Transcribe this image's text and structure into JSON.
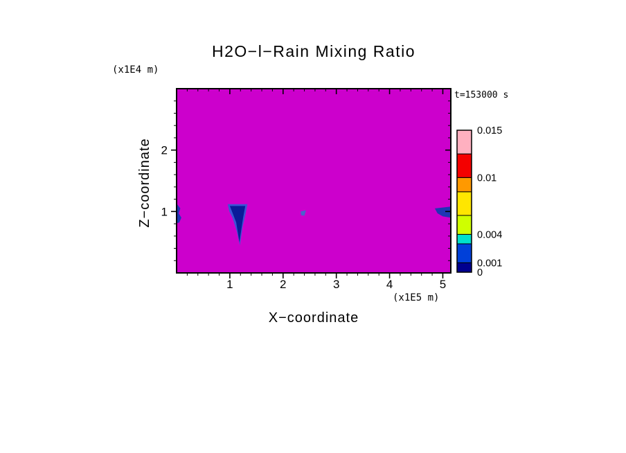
{
  "chart_data": {
    "type": "heatmap",
    "title": "H2O−l−Rain Mixing Ratio",
    "xlabel": "X−coordinate",
    "ylabel": "Z−coordinate",
    "x_units_label": "(x1E5 m)",
    "y_units_label": "(x1E4 m)",
    "time_annotation": "t=153000 s",
    "xlim": [
      0,
      5.15
    ],
    "ylim": [
      0,
      3.0
    ],
    "x_major_ticks": [
      1,
      2,
      3,
      4,
      5
    ],
    "y_major_ticks": [
      1,
      2
    ],
    "minor_tick_step": 0.2,
    "field_fill_color": "#cc00cc",
    "frame_color": "#000000",
    "colorbar": {
      "range": [
        0,
        0.015
      ],
      "labels": [
        {
          "value": 0.015,
          "text": "0.015"
        },
        {
          "value": 0.01,
          "text": "0.01"
        },
        {
          "value": 0.004,
          "text": "0.004"
        },
        {
          "value": 0.001,
          "text": "0.001"
        },
        {
          "value": 0,
          "text": "0"
        }
      ],
      "segments": [
        {
          "from": 0,
          "to": 0.001,
          "color": "#00008f"
        },
        {
          "from": 0.001,
          "to": 0.003,
          "color": "#0040d9"
        },
        {
          "from": 0.003,
          "to": 0.004,
          "color": "#00e0cc"
        },
        {
          "from": 0.004,
          "to": 0.006,
          "color": "#cfff00"
        },
        {
          "from": 0.006,
          "to": 0.0085,
          "color": "#ffe600"
        },
        {
          "from": 0.0085,
          "to": 0.01,
          "color": "#ff9900"
        },
        {
          "from": 0.01,
          "to": 0.0125,
          "color": "#f40000"
        },
        {
          "from": 0.0125,
          "to": 0.015,
          "color": "#ffb0c0"
        }
      ]
    },
    "features": [
      {
        "name": "rain-patch-left-edge",
        "color": "#1f35b4",
        "points": [
          [
            0,
            1.13
          ],
          [
            0.07,
            1.05
          ],
          [
            0.04,
            0.97
          ],
          [
            0.09,
            0.9
          ],
          [
            0.05,
            0.82
          ],
          [
            0,
            0.81
          ]
        ]
      },
      {
        "name": "rain-plume-fringe",
        "color": "#3a55d6",
        "points": [
          [
            0.96,
            1.12
          ],
          [
            1.33,
            1.12
          ],
          [
            1.3,
            0.98
          ],
          [
            1.24,
            0.75
          ],
          [
            1.19,
            0.45
          ],
          [
            1.13,
            0.68
          ],
          [
            1.05,
            0.9
          ],
          [
            0.99,
            1.0
          ]
        ]
      },
      {
        "name": "rain-plume-core",
        "color": "#0a1a99",
        "points": [
          [
            1.0,
            1.09
          ],
          [
            1.29,
            1.09
          ],
          [
            1.25,
            0.9
          ],
          [
            1.18,
            0.5
          ],
          [
            1.12,
            0.82
          ],
          [
            1.05,
            0.98
          ]
        ]
      },
      {
        "name": "rain-speck",
        "color": "#4a62cc",
        "points": [
          [
            2.33,
            1.0
          ],
          [
            2.43,
            1.02
          ],
          [
            2.4,
            0.93
          ],
          [
            2.34,
            0.94
          ]
        ]
      },
      {
        "name": "rain-patch-right-edge",
        "color": "#1f35b4",
        "points": [
          [
            4.85,
            1.05
          ],
          [
            5.15,
            1.08
          ],
          [
            5.15,
            0.9
          ],
          [
            5.0,
            0.92
          ],
          [
            4.9,
            0.97
          ]
        ]
      }
    ]
  }
}
